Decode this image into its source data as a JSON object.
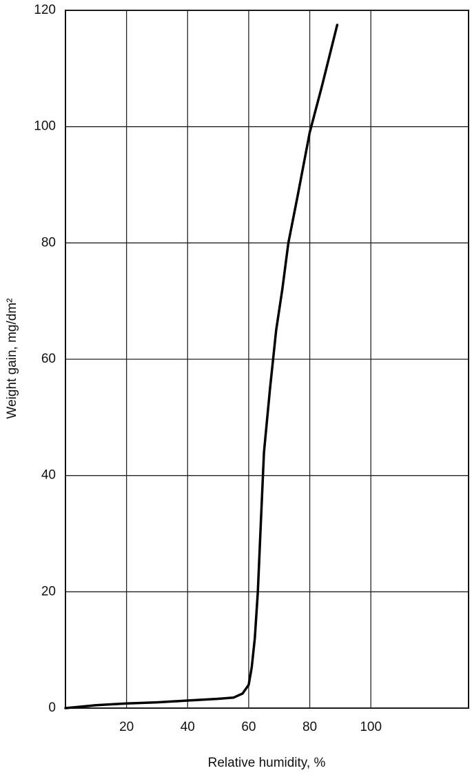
{
  "chart_data": {
    "type": "line",
    "x_label": "Relative humidity, %",
    "y_label": "Weight gain, mg/dm²",
    "x": [
      0,
      10,
      20,
      30,
      40,
      50,
      55,
      58,
      60,
      61,
      62,
      63,
      64,
      65,
      67,
      69,
      71,
      73,
      76,
      80,
      84,
      89
    ],
    "values": [
      0,
      0.5,
      0.8,
      1.0,
      1.3,
      1.6,
      1.8,
      2.5,
      4,
      7,
      12,
      20,
      32,
      44,
      55,
      65,
      72,
      80,
      88,
      99,
      107,
      117.5
    ],
    "color": "#000000",
    "xlim": [
      0,
      132
    ],
    "ylim": [
      0,
      120
    ],
    "xticks": [
      20,
      40,
      60,
      80,
      100
    ],
    "yticks": [
      0,
      20,
      40,
      60,
      80,
      100,
      120
    ],
    "grid": true
  }
}
